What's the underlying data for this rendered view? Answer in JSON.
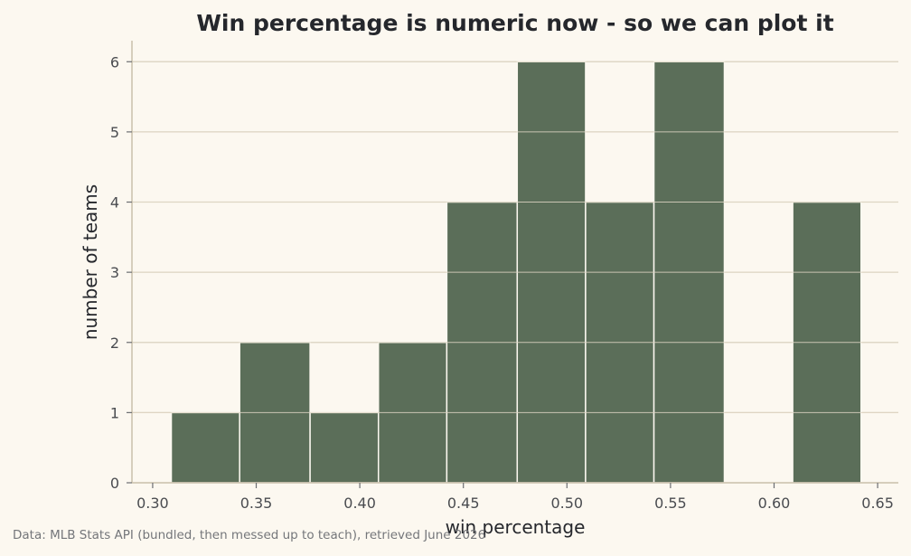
{
  "chart_data": {
    "type": "bar",
    "subtype": "histogram",
    "title": "Win percentage is numeric now - so we can plot it",
    "xlabel": "win percentage",
    "ylabel": "number of teams",
    "bin_edges": [
      0.309,
      0.342,
      0.376,
      0.409,
      0.442,
      0.476,
      0.509,
      0.542,
      0.576,
      0.609,
      0.642
    ],
    "counts": [
      1,
      2,
      1,
      2,
      4,
      6,
      4,
      6,
      0,
      4
    ],
    "xlim": [
      0.29,
      0.66
    ],
    "ylim": [
      0,
      6.3
    ],
    "xticks": [
      0.3,
      0.35,
      0.4,
      0.45,
      0.5,
      0.55,
      0.6,
      0.65
    ],
    "xtick_labels": [
      "0.30",
      "0.35",
      "0.40",
      "0.45",
      "0.50",
      "0.55",
      "0.60",
      "0.65"
    ],
    "yticks": [
      0,
      1,
      2,
      3,
      4,
      5,
      6
    ],
    "ytick_labels": [
      "0",
      "1",
      "2",
      "3",
      "4",
      "5",
      "6"
    ],
    "grid": "horizontal",
    "legend": "none",
    "colors": {
      "bar": "#5b6e59",
      "bar_edge": "#fcf8f0",
      "grid": "#ddd5c3",
      "axis": "#c9c0ab",
      "background": "#fcf8f0"
    }
  },
  "caption": "Data: MLB Stats API (bundled, then messed up to teach), retrieved June 2026"
}
